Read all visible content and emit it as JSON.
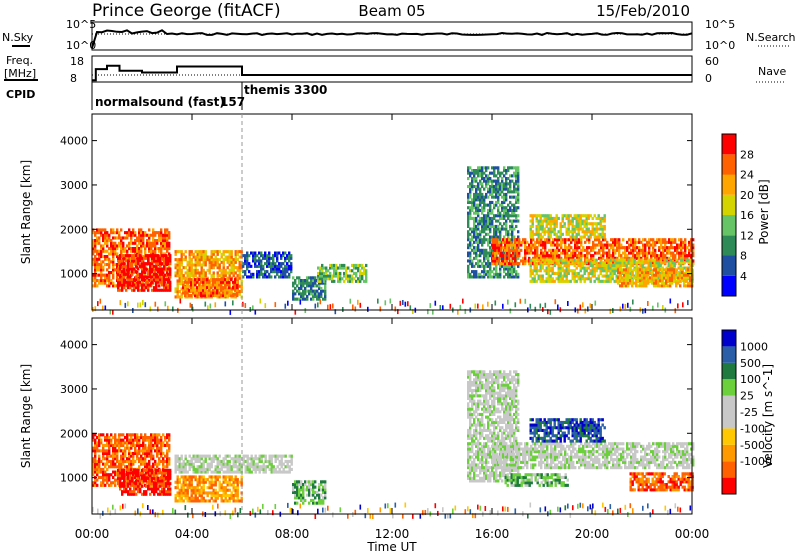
{
  "header": {
    "station": "Prince George (fitACF)",
    "beam": "Beam 05",
    "date": "15/Feb/2010"
  },
  "noise_panel": {
    "left_label": "N.Sky",
    "left_ticks": [
      "10^5",
      "10^0"
    ],
    "right_label": "N.Search",
    "right_ticks": [
      "10^5",
      "10^0"
    ]
  },
  "freq_panel": {
    "left_label_line1": "Freq.",
    "left_label_line2": "[MHz]",
    "left_ticks": [
      "18",
      "8"
    ],
    "right_label": "Nave",
    "right_ticks": [
      "60",
      "0"
    ]
  },
  "cpid": {
    "label": "CPID",
    "modes": [
      {
        "name": "normalsound (fast)",
        "id": "157"
      },
      {
        "name": "themis",
        "id": "3300"
      }
    ]
  },
  "time_axis": {
    "label": "Time UT",
    "ticks": [
      "00:00",
      "04:00",
      "08:00",
      "12:00",
      "16:00",
      "20:00",
      "00:00"
    ]
  },
  "colors": {
    "power_scale": [
      "#0000ff",
      "#1f4fa0",
      "#2e8b57",
      "#66c466",
      "#d4d400",
      "#ffa500",
      "#ff6000",
      "#ff0000"
    ],
    "velocity_scale": [
      "#0000cc",
      "#2a5fa8",
      "#1f7a3f",
      "#6ccf3c",
      "#c8c8c8",
      "#c8c8c8",
      "#ffc800",
      "#ff9900",
      "#ff6000",
      "#ff0000"
    ]
  },
  "chart_data": [
    {
      "type": "heatmap",
      "name": "power",
      "ylabel": "Slant Range [km]",
      "yticks": [
        1000,
        2000,
        3000,
        4000
      ],
      "ylim": [
        180,
        4600
      ],
      "xlim_hours": [
        0,
        24
      ],
      "colorbar_label": "Power [dB]",
      "colorbar_ticks": [
        "4",
        "8",
        "12",
        "16",
        "20",
        "24",
        "28"
      ],
      "regions": [
        {
          "t": [
            0.0,
            3.1
          ],
          "r": [
            700,
            2000
          ],
          "level": 6
        },
        {
          "t": [
            1.0,
            3.1
          ],
          "r": [
            600,
            1400
          ],
          "level": 7
        },
        {
          "t": [
            3.3,
            6.0
          ],
          "r": [
            450,
            1500
          ],
          "level": 5
        },
        {
          "t": [
            3.6,
            5.8
          ],
          "r": [
            480,
            900
          ],
          "level": 6
        },
        {
          "t": [
            6.0,
            8.0
          ],
          "r": [
            900,
            1500
          ],
          "level": 1
        },
        {
          "t": [
            8.0,
            9.3
          ],
          "r": [
            400,
            900
          ],
          "level": 2
        },
        {
          "t": [
            9.0,
            11.0
          ],
          "r": [
            800,
            1200
          ],
          "level": 3
        },
        {
          "t": [
            15.0,
            17.0
          ],
          "r": [
            900,
            3400
          ],
          "level": 2
        },
        {
          "t": [
            16.0,
            24.0
          ],
          "r": [
            1200,
            1800
          ],
          "level": 6
        },
        {
          "t": [
            17.5,
            24.0
          ],
          "r": [
            800,
            1300
          ],
          "level": 4
        },
        {
          "t": [
            17.5,
            20.5
          ],
          "r": [
            1800,
            2300
          ],
          "level": 4
        },
        {
          "t": [
            21.0,
            24.0
          ],
          "r": [
            700,
            1100
          ],
          "level": 5
        }
      ]
    },
    {
      "type": "heatmap",
      "name": "velocity",
      "ylabel": "Slant Range [km]",
      "yticks": [
        1000,
        2000,
        3000,
        4000
      ],
      "ylim": [
        180,
        4600
      ],
      "xlim_hours": [
        0,
        24
      ],
      "colorbar_label": "Velocity [m s^-1]",
      "colorbar_ticks": [
        "1000",
        "500",
        "100",
        "25",
        "-25",
        "-100",
        "-500",
        "-1000"
      ],
      "regions": [
        {
          "t": [
            0.0,
            3.1
          ],
          "r": [
            800,
            2000
          ],
          "level": 8
        },
        {
          "t": [
            1.0,
            3.1
          ],
          "r": [
            600,
            1200
          ],
          "level": 9
        },
        {
          "t": [
            3.3,
            6.0
          ],
          "r": [
            450,
            1000
          ],
          "level": 7
        },
        {
          "t": [
            3.3,
            8.0
          ],
          "r": [
            1100,
            1500
          ],
          "level": 4
        },
        {
          "t": [
            8.0,
            9.3
          ],
          "r": [
            400,
            900
          ],
          "level": 3
        },
        {
          "t": [
            15.0,
            17.0
          ],
          "r": [
            900,
            3400
          ],
          "level": 4
        },
        {
          "t": [
            16.0,
            24.0
          ],
          "r": [
            1200,
            1800
          ],
          "level": 4
        },
        {
          "t": [
            16.5,
            19.0
          ],
          "r": [
            800,
            1100
          ],
          "level": 3
        },
        {
          "t": [
            17.5,
            20.5
          ],
          "r": [
            1800,
            2300
          ],
          "level": 1
        },
        {
          "t": [
            21.5,
            24.0
          ],
          "r": [
            700,
            1100
          ],
          "level": 8
        }
      ]
    },
    {
      "type": "line",
      "name": "frequency",
      "x_hours": [
        0.0,
        0.15,
        0.15,
        0.6,
        0.6,
        1.1,
        1.1,
        2.0,
        2.0,
        3.4,
        3.4,
        6.0,
        6.0,
        24.0
      ],
      "y_mhz": [
        8.5,
        8.5,
        15.0,
        15.0,
        17.0,
        17.0,
        14.0,
        14.0,
        13.0,
        13.0,
        16.5,
        16.5,
        11.5,
        11.5
      ],
      "nave_ref": 11.5
    }
  ]
}
